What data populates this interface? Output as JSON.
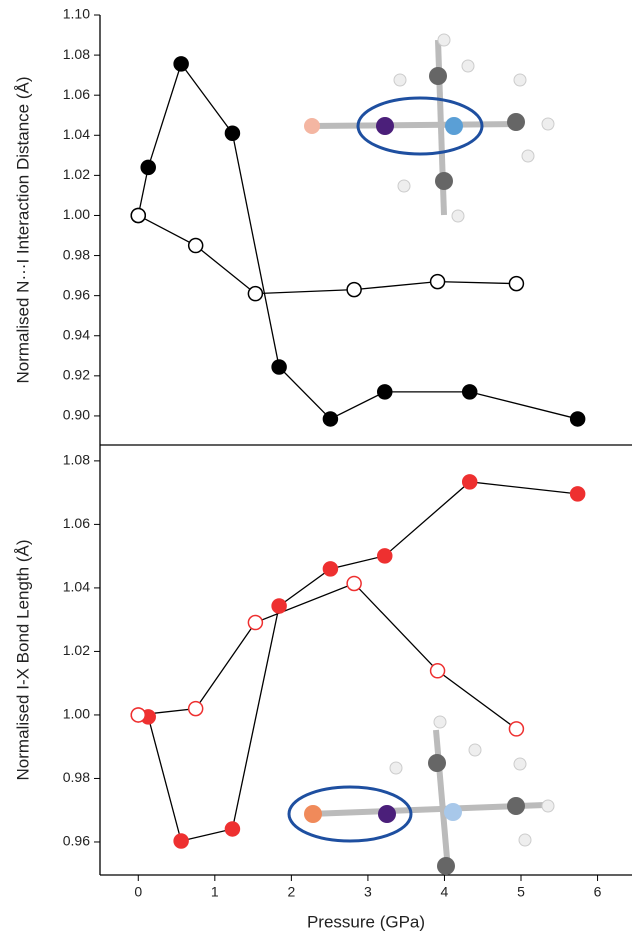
{
  "chart_data": [
    {
      "type": "line",
      "y_label": "Normalised N···I Interaction Distance (Å)",
      "xlim": [
        -0.5,
        6.45
      ],
      "ylim": [
        0.8855,
        1.1
      ],
      "yticks": [
        {
          "value": 0.9,
          "label": "0.90"
        },
        0.92,
        0.94,
        0.96,
        0.98,
        {
          "value": 1.0,
          "label": "1.00"
        },
        1.02,
        1.04,
        1.06,
        1.08,
        {
          "value": 1.1,
          "label": "1.10"
        }
      ],
      "series": [
        {
          "color": "#000000",
          "marker_fill": "#000000",
          "x": [
            0,
            0.13,
            0.56,
            1.23,
            1.84,
            2.51,
            3.22,
            4.33,
            5.74
          ],
          "values": [
            1.0,
            1.024,
            1.0756,
            1.041,
            0.9244,
            0.8985,
            0.912,
            0.912,
            0.8985
          ]
        },
        {
          "color": "#000000",
          "marker_fill": "#ffffff",
          "x": [
            0,
            0.75,
            1.53,
            2.82,
            3.91,
            4.94
          ],
          "values": [
            1.0,
            0.985,
            0.961,
            0.963,
            0.967,
            0.966
          ]
        }
      ]
    },
    {
      "type": "line",
      "y_label": "Normalised I-X Bond Length (Å)",
      "x_label": "Pressure (GPa)",
      "xlim": [
        -0.5,
        6.45
      ],
      "ylim": [
        0.9496,
        1.085
      ],
      "xticks": [
        0,
        1,
        2,
        3,
        4,
        5,
        6
      ],
      "yticks": [
        0.96,
        0.98,
        {
          "value": 1.0,
          "label": "1.00"
        },
        1.02,
        1.04,
        1.06,
        1.08
      ],
      "series": [
        {
          "color": "#ee3030",
          "marker_fill": "#ee3030",
          "x": [
            0,
            0.13,
            0.56,
            1.23,
            1.84,
            2.51,
            3.22,
            4.33,
            5.74
          ],
          "values": [
            1.0,
            0.9994,
            0.9603,
            0.9641,
            1.0343,
            1.046,
            1.0501,
            1.0734,
            1.0696
          ]
        },
        {
          "color": "#ee3030",
          "marker_fill": "#ffffff",
          "x": [
            0,
            0.75,
            1.53,
            2.82,
            3.91,
            4.94
          ],
          "values": [
            1.0,
            1.002,
            1.0291,
            1.0414,
            1.0139,
            0.9956
          ]
        }
      ]
    }
  ]
}
